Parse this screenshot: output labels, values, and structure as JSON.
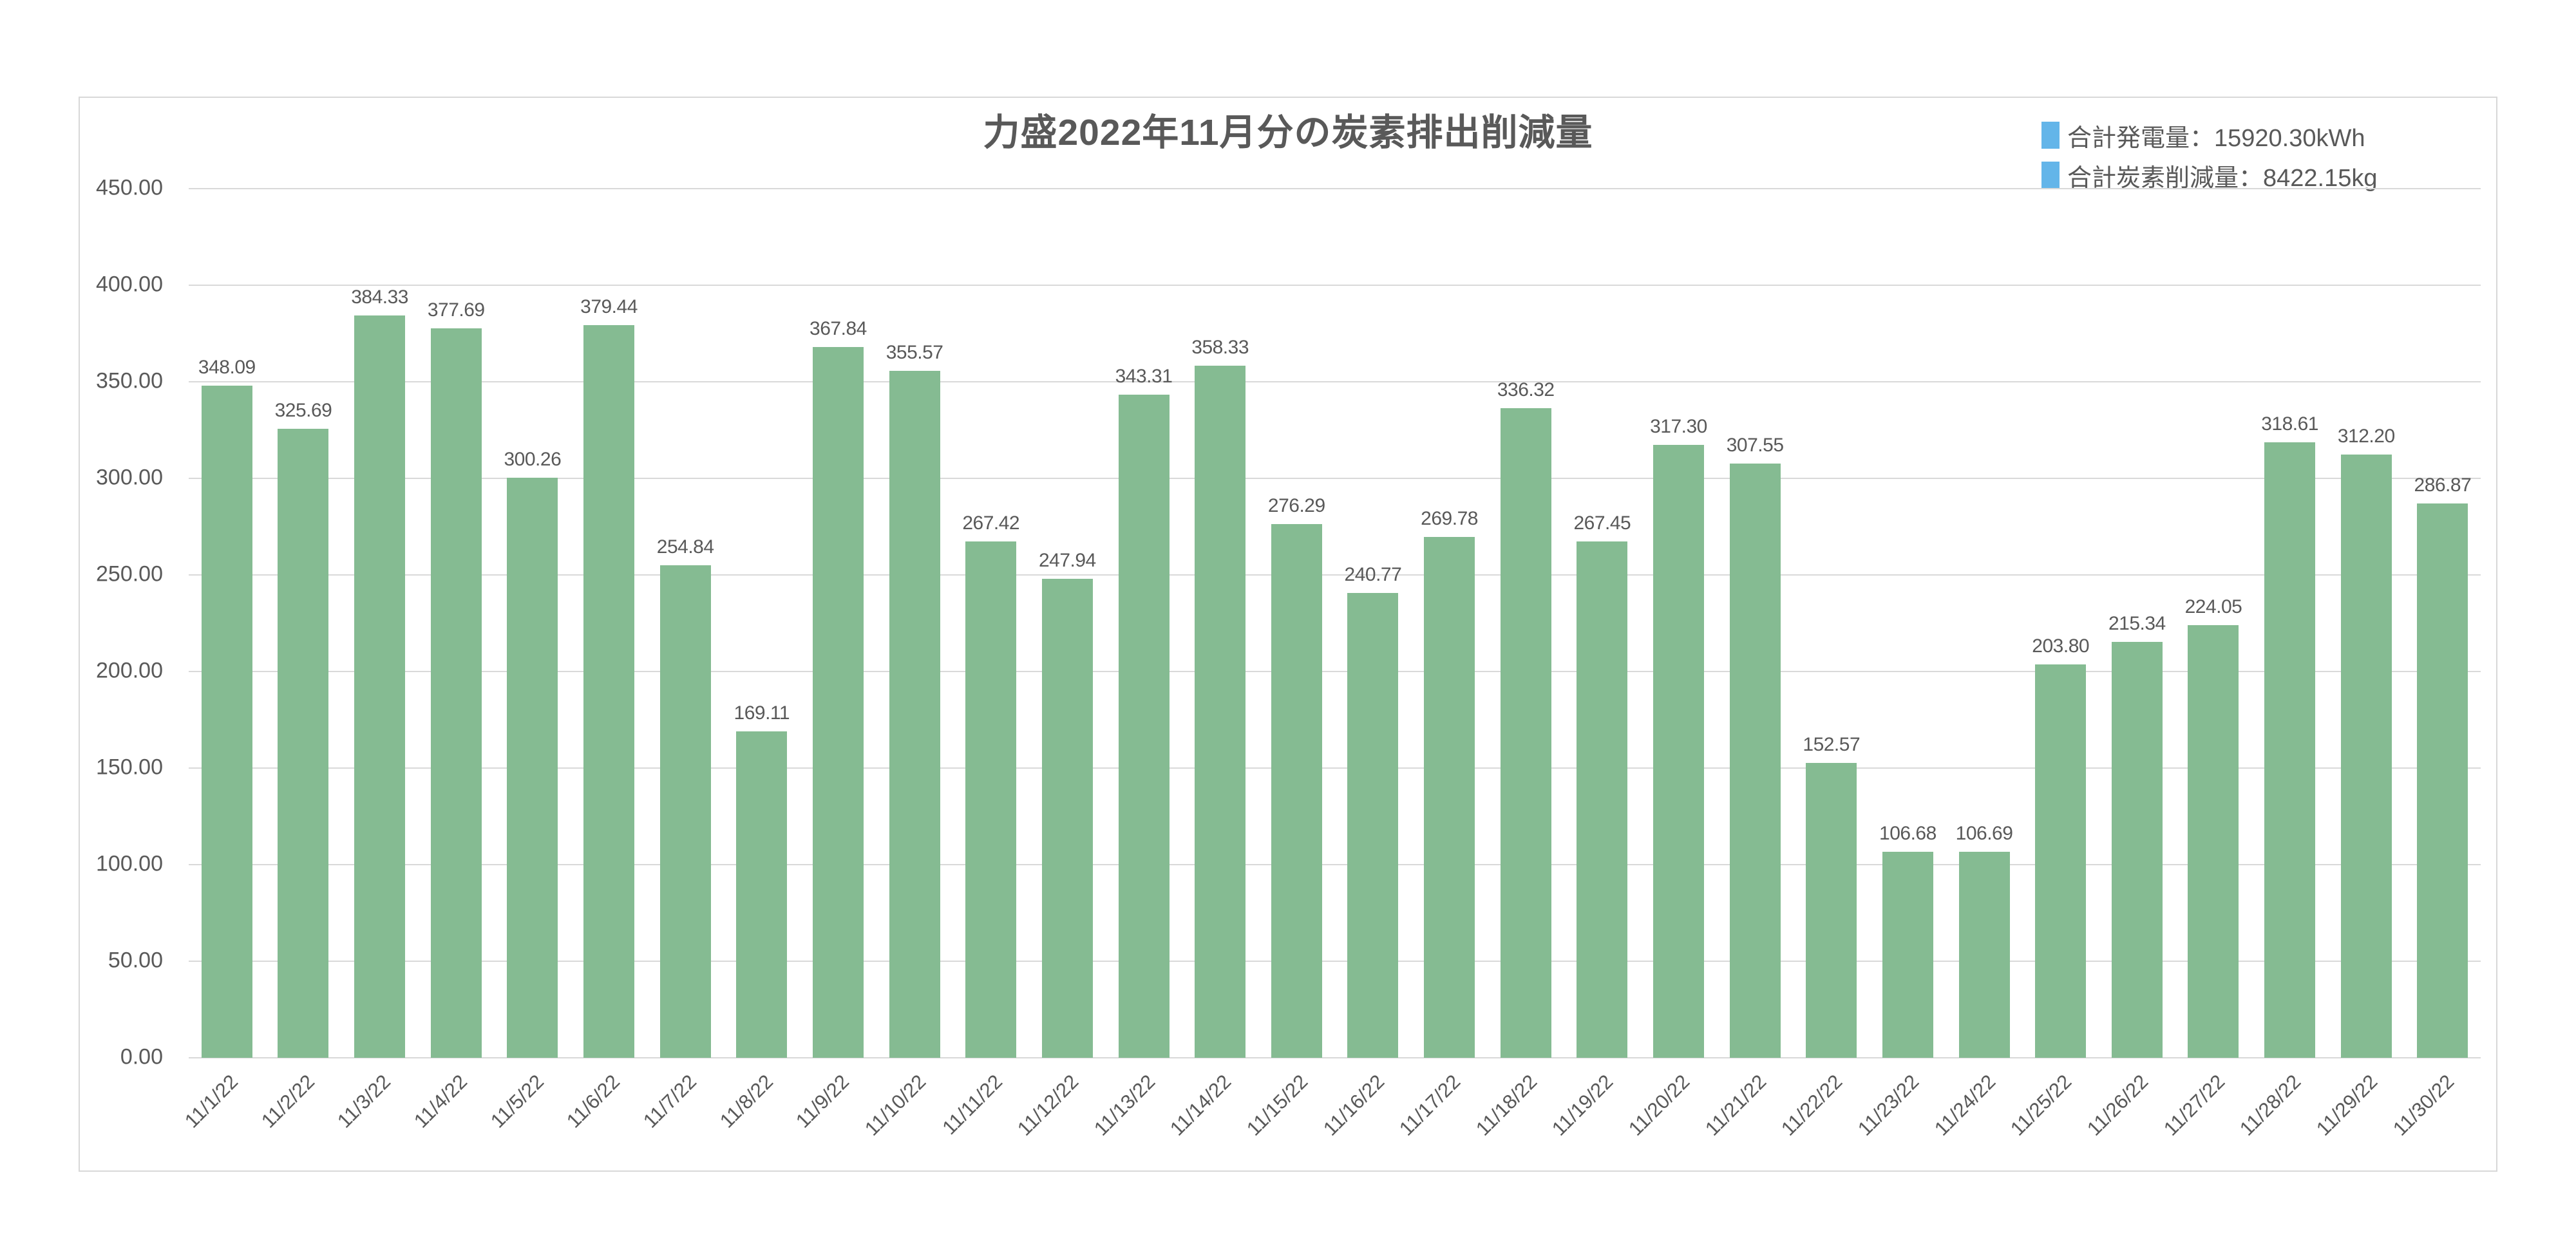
{
  "chart_data": {
    "type": "bar",
    "title": "力盛2022年11月分の炭素排出削減量",
    "categories": [
      "11/1/22",
      "11/2/22",
      "11/3/22",
      "11/4/22",
      "11/5/22",
      "11/6/22",
      "11/7/22",
      "11/8/22",
      "11/9/22",
      "11/10/22",
      "11/11/22",
      "11/12/22",
      "11/13/22",
      "11/14/22",
      "11/15/22",
      "11/16/22",
      "11/17/22",
      "11/18/22",
      "11/19/22",
      "11/20/22",
      "11/21/22",
      "11/22/22",
      "11/23/22",
      "11/24/22",
      "11/25/22",
      "11/26/22",
      "11/27/22",
      "11/28/22",
      "11/29/22",
      "11/30/22"
    ],
    "values": [
      348.09,
      325.69,
      384.33,
      377.69,
      300.26,
      379.44,
      254.84,
      169.11,
      367.84,
      355.57,
      267.42,
      247.94,
      343.31,
      358.33,
      276.29,
      240.77,
      269.78,
      336.32,
      267.45,
      317.3,
      307.55,
      152.57,
      106.68,
      106.69,
      203.8,
      215.34,
      224.05,
      318.61,
      312.2,
      286.87
    ],
    "value_label_decimals": 2,
    "ylim": [
      0,
      450
    ],
    "ytick_step": 50,
    "yticks_top_to_bottom": [
      "450.00",
      "400.00",
      "350.00",
      "300.00",
      "250.00",
      "200.00",
      "150.00",
      "100.00",
      "50.00",
      "0.00"
    ],
    "grid": "horizontal",
    "legend_position": "top-right",
    "legend": [
      {
        "swatch_color": "#63B5E9",
        "text": "合計発電量：15920.30kWh"
      },
      {
        "swatch_color": "#63B5E9",
        "text": "合計炭素削減量：8422.15kg"
      }
    ],
    "colors": {
      "bar": "#85BB92",
      "legend_swatch": "#63B5E9",
      "text": "#595959",
      "gridline": "#D9D9D9",
      "card_border": "#D8D8D8",
      "background": "#FFFFFF"
    },
    "x_tick_rotation_deg": -45
  }
}
